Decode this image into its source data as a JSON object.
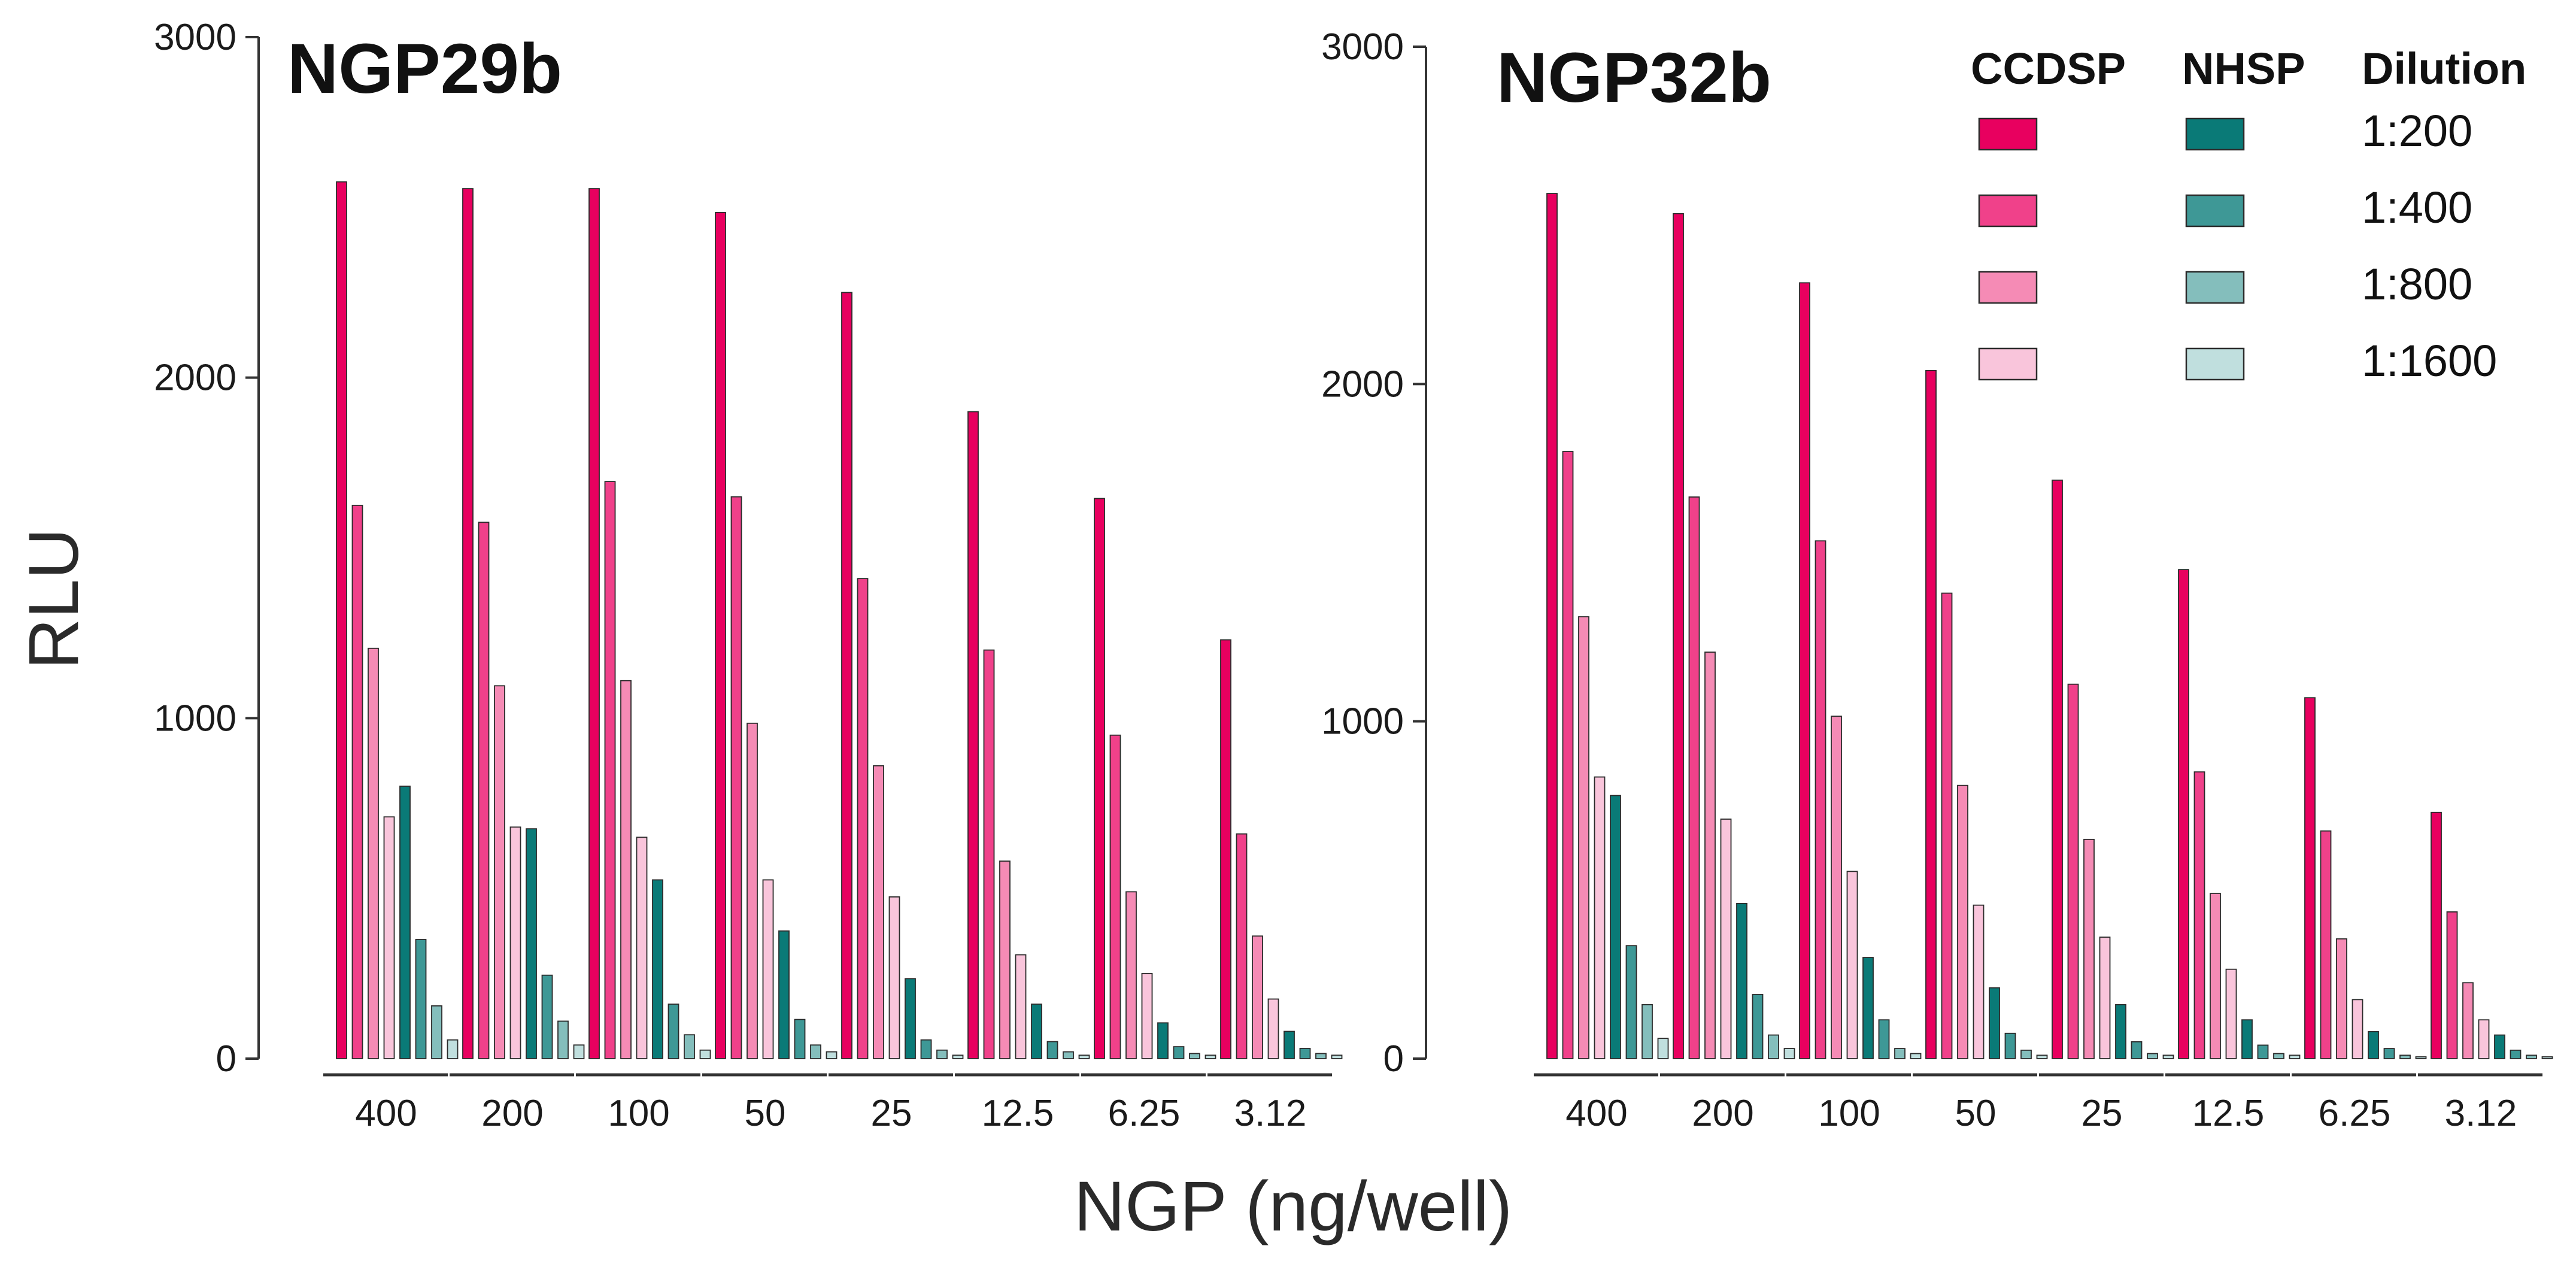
{
  "chart_data": {
    "type": "bar",
    "xlabel": "NGP (ng/well)",
    "ylabel": "RLU",
    "ylim": [
      0,
      3000
    ],
    "yticks": [
      "0",
      "1000",
      "2000",
      "3000"
    ],
    "categories": [
      "400",
      "200",
      "100",
      "50",
      "25",
      "12.5",
      "6.25",
      "3.12"
    ],
    "legend": {
      "placement": "top-right",
      "headers": {
        "ccdsp": "CCDSP",
        "nhsp": "NHSP",
        "dilution": "Dilution"
      },
      "dilutions": [
        "1:200",
        "1:400",
        "1:800",
        "1:1600"
      ],
      "ccdsp_colors": [
        "#E8005F",
        "#F0418A",
        "#F58BB5",
        "#F9C5DB"
      ],
      "nhsp_colors": [
        "#0A7A77",
        "#3E9896",
        "#84BEBC",
        "#C0DFDE"
      ]
    },
    "panels": [
      {
        "title": "NGP29b",
        "series": [
          {
            "name": "CCDSP 1:200",
            "group": "CCDSP",
            "values": [
              2575,
              2555,
              2555,
              2485,
              2250,
              1900,
              1645,
              1230
            ]
          },
          {
            "name": "CCDSP 1:400",
            "group": "CCDSP",
            "values": [
              1625,
              1575,
              1695,
              1650,
              1410,
              1200,
              950,
              660
            ]
          },
          {
            "name": "CCDSP 1:800",
            "group": "CCDSP",
            "values": [
              1205,
              1095,
              1110,
              985,
              860,
              580,
              490,
              360
            ]
          },
          {
            "name": "CCDSP 1:1600",
            "group": "CCDSP",
            "values": [
              710,
              680,
              650,
              525,
              475,
              305,
              250,
              175
            ]
          },
          {
            "name": "NHSP 1:200",
            "group": "NHSP",
            "values": [
              800,
              675,
              525,
              375,
              235,
              160,
              105,
              80
            ]
          },
          {
            "name": "NHSP 1:400",
            "group": "NHSP",
            "values": [
              350,
              245,
              160,
              115,
              55,
              50,
              35,
              30
            ]
          },
          {
            "name": "NHSP 1:800",
            "group": "NHSP",
            "values": [
              155,
              110,
              70,
              40,
              25,
              20,
              15,
              15
            ]
          },
          {
            "name": "NHSP 1:1600",
            "group": "NHSP",
            "values": [
              55,
              40,
              25,
              20,
              10,
              10,
              10,
              10
            ]
          }
        ]
      },
      {
        "title": "NGP32b",
        "series": [
          {
            "name": "CCDSP 1:200",
            "group": "CCDSP",
            "values": [
              2565,
              2505,
              2300,
              2040,
              1715,
              1450,
              1070,
              730
            ]
          },
          {
            "name": "CCDSP 1:400",
            "group": "CCDSP",
            "values": [
              1800,
              1665,
              1535,
              1380,
              1110,
              850,
              675,
              435
            ]
          },
          {
            "name": "CCDSP 1:800",
            "group": "CCDSP",
            "values": [
              1310,
              1205,
              1015,
              810,
              650,
              490,
              355,
              225
            ]
          },
          {
            "name": "CCDSP 1:1600",
            "group": "CCDSP",
            "values": [
              835,
              710,
              555,
              455,
              360,
              265,
              175,
              115
            ]
          },
          {
            "name": "NHSP 1:200",
            "group": "NHSP",
            "values": [
              780,
              460,
              300,
              210,
              160,
              115,
              80,
              70
            ]
          },
          {
            "name": "NHSP 1:400",
            "group": "NHSP",
            "values": [
              335,
              190,
              115,
              75,
              50,
              40,
              30,
              25
            ]
          },
          {
            "name": "NHSP 1:800",
            "group": "NHSP",
            "values": [
              160,
              70,
              30,
              25,
              15,
              15,
              10,
              10
            ]
          },
          {
            "name": "NHSP 1:1600",
            "group": "NHSP",
            "values": [
              60,
              30,
              15,
              10,
              10,
              10,
              5,
              5
            ]
          }
        ]
      }
    ]
  }
}
